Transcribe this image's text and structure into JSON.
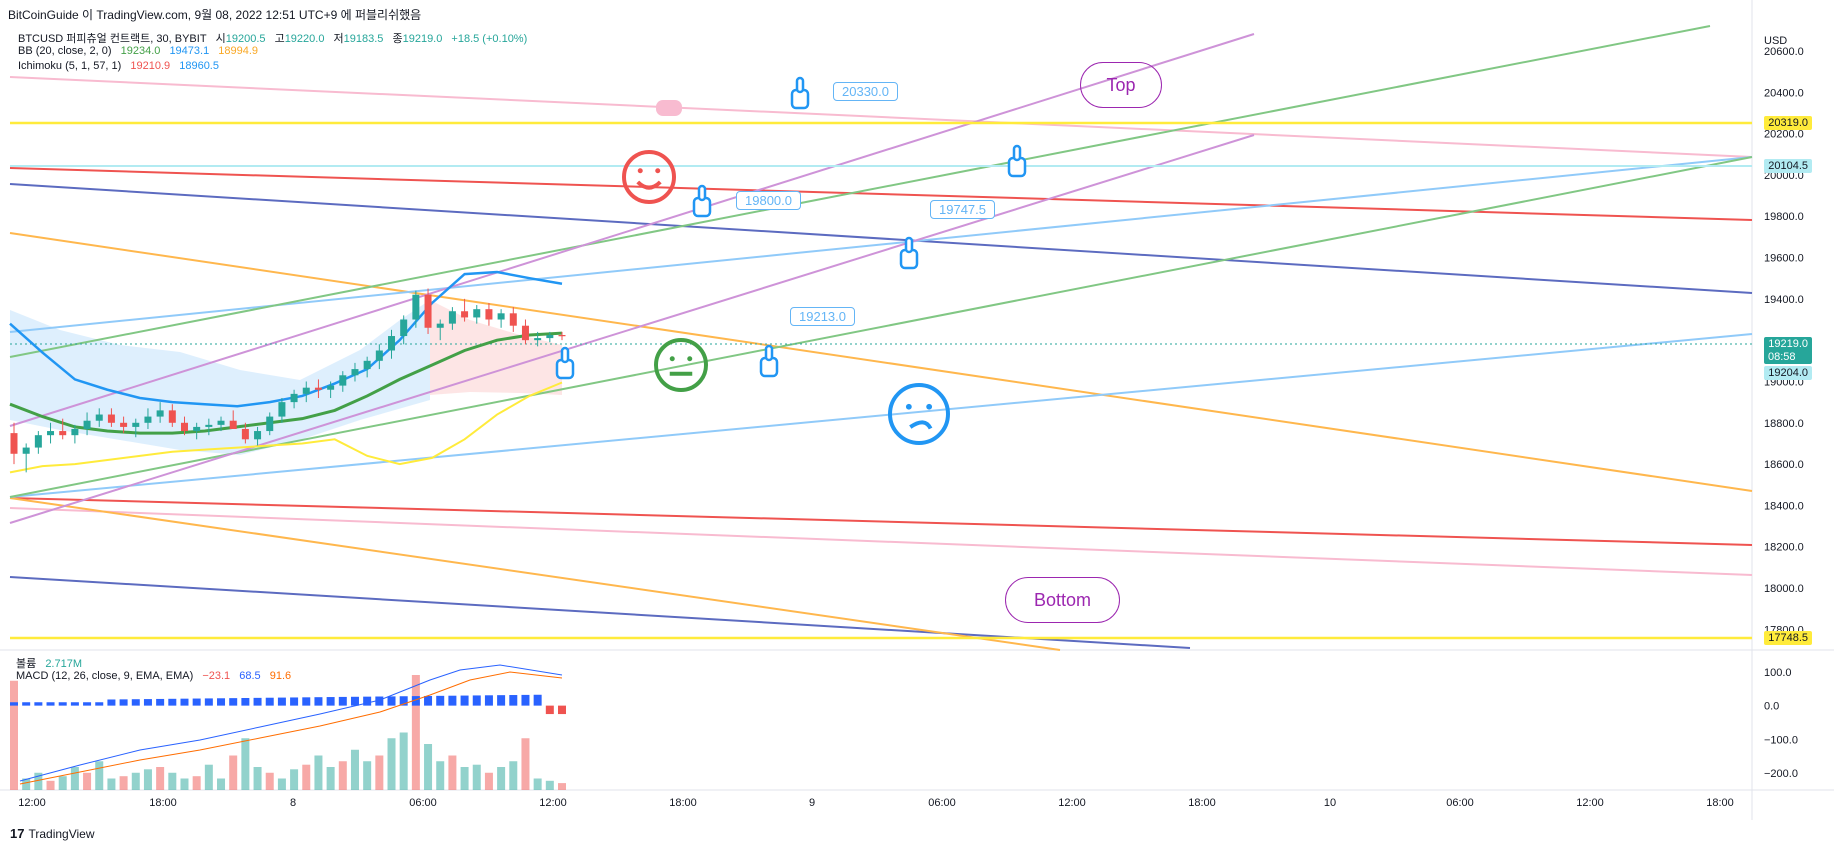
{
  "header": {
    "source": "BitCoinGuide 이 TradingView.com, 9월 08, 2022 12:51 UTC+9 에 퍼블리쉬했음"
  },
  "legend": {
    "symbol": "BTCUSD 퍼피츄얼 컨트랙트, 30, BYBIT",
    "open_label": "시",
    "open": "19200.5",
    "high_label": "고",
    "high": "19220.0",
    "low_label": "저",
    "low": "19183.5",
    "close_label": "종",
    "close": "19219.0",
    "change": "+18.5 (+0.10%)",
    "bb_label": "BB (20, close, 2, 0)",
    "bb_mid": "19234.0",
    "bb_upper": "19473.1",
    "bb_lower": "18994.9",
    "ichimoku_label": "Ichimoku (5, 1, 57, 1)",
    "ichi_a": "19210.9",
    "ichi_b": "18960.5"
  },
  "lower_legend": {
    "volume_label": "볼륨",
    "volume_value": "2.717M",
    "macd_label": "MACD (12, 26, close, 9, EMA, EMA)",
    "macd_hist": "−23.1",
    "macd_line": "68.5",
    "macd_signal": "91.6"
  },
  "price_axis": {
    "currency": "USD",
    "ticks": [
      "20600.0",
      "20400.0",
      "20200.0",
      "20000.0",
      "19800.0",
      "19600.0",
      "19400.0",
      "19000.0",
      "18800.0",
      "18600.0",
      "18400.0",
      "18200.0",
      "18000.0",
      "17800.0"
    ],
    "badges": {
      "top_line": "20319.0",
      "cyan_line": "20104.5",
      "last_price": "19219.0",
      "countdown": "08:58",
      "ref_price": "19204.0",
      "bottom_line": "17748.5"
    }
  },
  "macd_axis": {
    "ticks": [
      "100.0",
      "0.0",
      "−100.0",
      "−200.0"
    ]
  },
  "time_axis": {
    "ticks": [
      "12:00",
      "18:00",
      "8",
      "06:00",
      "12:00",
      "18:00",
      "9",
      "06:00",
      "12:00",
      "18:00",
      "10",
      "06:00",
      "12:00",
      "18:00"
    ]
  },
  "annotations": {
    "callouts": [
      "20330.0",
      "19800.0",
      "19747.5",
      "19213.0"
    ],
    "top_label": "Top",
    "bottom_label": "Bottom"
  },
  "footer": {
    "logo_mark": "17",
    "brand": "TradingView"
  },
  "colors": {
    "up": "#26a69a",
    "down": "#ef5350",
    "bb_mid": "#43a047",
    "bb_upper": "#2196f3",
    "bb_lower": "#ffeb3b",
    "purple_line": "#ce93d8",
    "green_line": "#81c784",
    "orange_line": "#ffb74d",
    "blue_line": "#90caf9",
    "navy_line": "#5c6bc0",
    "red_line": "#ef5350",
    "pink_line": "#f8bbd0",
    "yellow_line": "#ffeb3b"
  },
  "chart_data": {
    "type": "line",
    "title": "BTCUSD 퍼피츄얼 컨트랙트, 30, BYBIT",
    "xlabel": "",
    "ylabel": "USD",
    "ylim": [
      17700,
      20750
    ],
    "x_range": [
      "9/7 10:00",
      "9/10 20:00"
    ],
    "candles_ohlc_approx": [
      [
        18750,
        18800,
        18600,
        18650
      ],
      [
        18650,
        18700,
        18560,
        18680
      ],
      [
        18680,
        18760,
        18650,
        18740
      ],
      [
        18740,
        18800,
        18700,
        18760
      ],
      [
        18760,
        18820,
        18720,
        18740
      ],
      [
        18740,
        18790,
        18700,
        18770
      ],
      [
        18770,
        18850,
        18740,
        18810
      ],
      [
        18810,
        18870,
        18780,
        18840
      ],
      [
        18840,
        18870,
        18780,
        18800
      ],
      [
        18800,
        18830,
        18750,
        18780
      ],
      [
        18780,
        18820,
        18730,
        18800
      ],
      [
        18800,
        18870,
        18770,
        18830
      ],
      [
        18830,
        18900,
        18800,
        18860
      ],
      [
        18860,
        18890,
        18780,
        18800
      ],
      [
        18800,
        18830,
        18740,
        18760
      ],
      [
        18760,
        18800,
        18720,
        18780
      ],
      [
        18780,
        18820,
        18740,
        18790
      ],
      [
        18790,
        18830,
        18760,
        18810
      ],
      [
        18810,
        18860,
        18780,
        18770
      ],
      [
        18770,
        18800,
        18700,
        18720
      ],
      [
        18720,
        18780,
        18690,
        18760
      ],
      [
        18760,
        18850,
        18740,
        18830
      ],
      [
        18830,
        18920,
        18800,
        18900
      ],
      [
        18900,
        18960,
        18870,
        18940
      ],
      [
        18940,
        19000,
        18900,
        18970
      ],
      [
        18970,
        19010,
        18920,
        18960
      ],
      [
        18960,
        19000,
        18920,
        18980
      ],
      [
        18980,
        19050,
        18950,
        19030
      ],
      [
        19030,
        19090,
        19000,
        19060
      ],
      [
        19060,
        19120,
        19020,
        19100
      ],
      [
        19100,
        19180,
        19060,
        19150
      ],
      [
        19150,
        19250,
        19110,
        19220
      ],
      [
        19220,
        19320,
        19180,
        19300
      ],
      [
        19300,
        19440,
        19260,
        19420
      ],
      [
        19420,
        19450,
        19230,
        19260
      ],
      [
        19260,
        19300,
        19200,
        19280
      ],
      [
        19280,
        19360,
        19250,
        19340
      ],
      [
        19340,
        19400,
        19290,
        19310
      ],
      [
        19310,
        19370,
        19280,
        19350
      ],
      [
        19350,
        19380,
        19270,
        19300
      ],
      [
        19300,
        19350,
        19260,
        19330
      ],
      [
        19330,
        19360,
        19240,
        19270
      ],
      [
        19270,
        19300,
        19180,
        19200
      ],
      [
        19200,
        19240,
        19170,
        19210
      ],
      [
        19210,
        19240,
        19190,
        19225
      ],
      [
        19225,
        19240,
        19200,
        19219
      ]
    ],
    "series": [
      {
        "name": "BB (20, close, 2, 0)",
        "values": [
          18890,
          18830,
          18780,
          18760,
          18750,
          18750,
          18760,
          18780,
          18800,
          18820,
          18860,
          18930,
          19010,
          19080,
          19150,
          19200,
          19225,
          19234
        ]
      },
      {
        "name": "Ichimoku (5, 1, 57, 1)",
        "values": [
          19210.9,
          18960.5
        ]
      }
    ],
    "horizontal_levels": [
      20319.0,
      20104.5,
      17748.5
    ],
    "callout_prices": [
      20330.0,
      19800.0,
      19747.5,
      19213.0
    ],
    "volume_last": "2.717M",
    "macd": {
      "histogram": -23.1,
      "macd": 68.5,
      "signal": 91.6,
      "ylim": [
        -250,
        150
      ]
    }
  }
}
